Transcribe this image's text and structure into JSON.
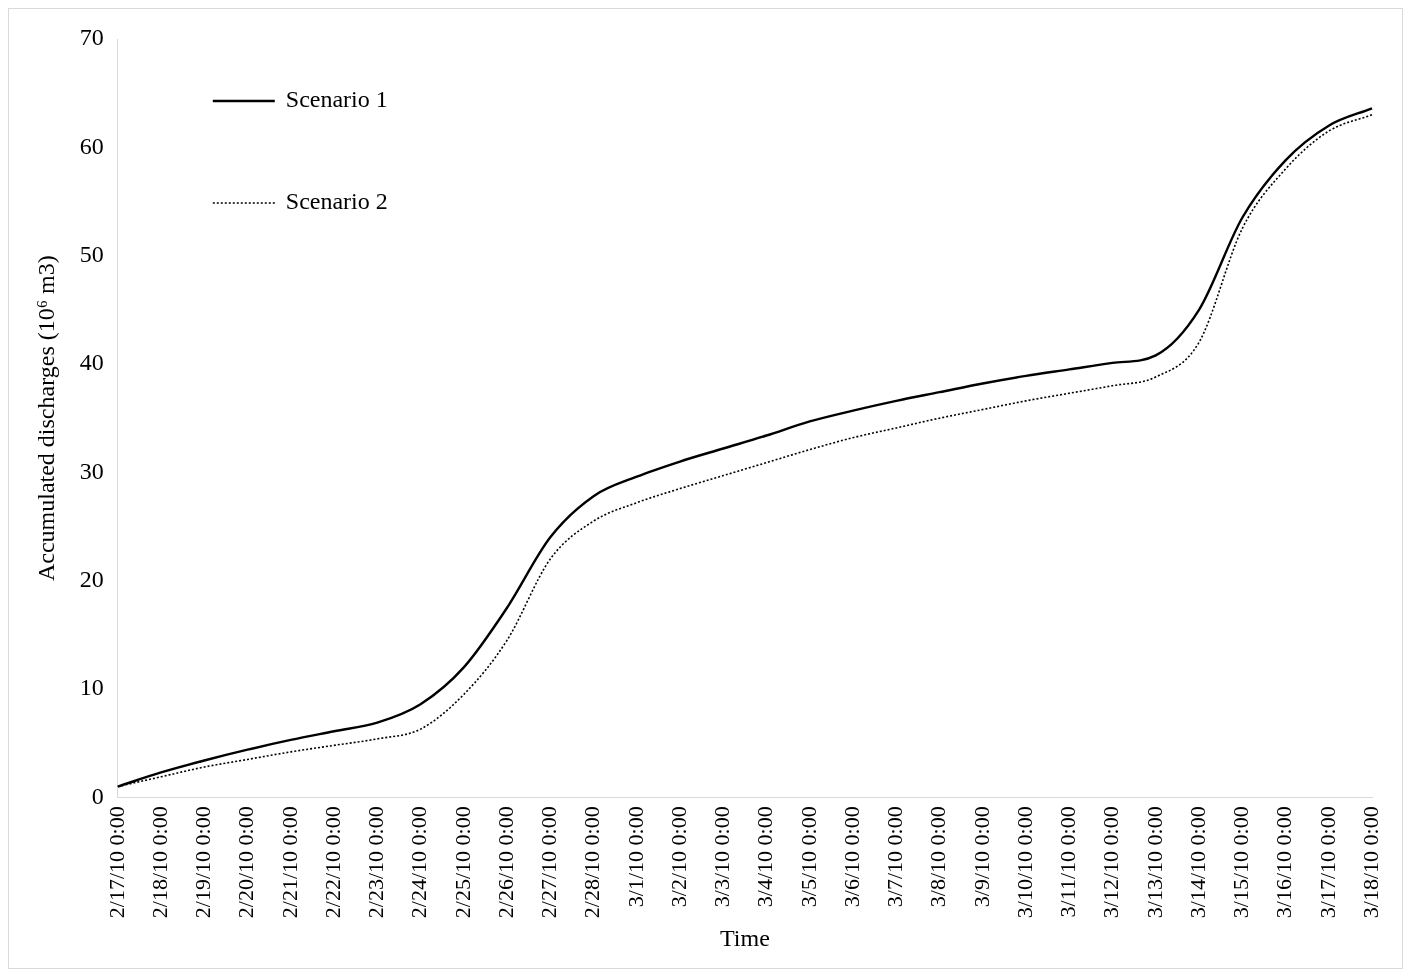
{
  "chart_data": {
    "type": "line",
    "xlabel": "Time",
    "ylabel": "Accumulated discharges (10⁶ m3)",
    "categories": [
      "2/17/10 0:00",
      "2/18/10 0:00",
      "2/19/10 0:00",
      "2/20/10 0:00",
      "2/21/10 0:00",
      "2/22/10 0:00",
      "2/23/10 0:00",
      "2/24/10 0:00",
      "2/25/10 0:00",
      "2/26/10 0:00",
      "2/27/10 0:00",
      "2/28/10 0:00",
      "3/1/10 0:00",
      "3/2/10 0:00",
      "3/3/10 0:00",
      "3/4/10 0:00",
      "3/5/10 0:00",
      "3/6/10 0:00",
      "3/7/10 0:00",
      "3/8/10 0:00",
      "3/9/10 0:00",
      "3/10/10 0:00",
      "3/11/10 0:00",
      "3/12/10 0:00",
      "3/13/10 0:00",
      "3/14/10 0:00",
      "3/15/10 0:00",
      "3/16/10 0:00",
      "3/17/10 0:00",
      "3/18/10 0:00"
    ],
    "series": [
      {
        "name": "Scenario 1",
        "color": "#000000",
        "line_style": "solid",
        "values": [
          1.0,
          2.3,
          3.4,
          4.4,
          5.3,
          6.1,
          6.9,
          8.6,
          12.0,
          17.5,
          24.0,
          27.8,
          29.6,
          31.0,
          32.2,
          33.4,
          34.7,
          35.7,
          36.6,
          37.4,
          38.2,
          38.9,
          39.5,
          40.1,
          40.8,
          45.0,
          53.5,
          58.8,
          62.0,
          63.6
        ]
      },
      {
        "name": "Scenario 2",
        "color": "#000000",
        "line_style": "dotted",
        "values": [
          1.0,
          1.9,
          2.8,
          3.5,
          4.2,
          4.8,
          5.4,
          6.3,
          9.5,
          14.5,
          22.0,
          25.5,
          27.2,
          28.5,
          29.7,
          30.9,
          32.1,
          33.2,
          34.1,
          35.0,
          35.8,
          36.6,
          37.3,
          38.0,
          38.8,
          42.0,
          52.5,
          58.0,
          61.5,
          63.0
        ]
      }
    ],
    "ylim": [
      0,
      70
    ],
    "yticks": [
      0,
      10,
      20,
      30,
      40,
      50,
      60,
      70
    ],
    "grid": false,
    "legend": "top left",
    "marker": "none"
  }
}
